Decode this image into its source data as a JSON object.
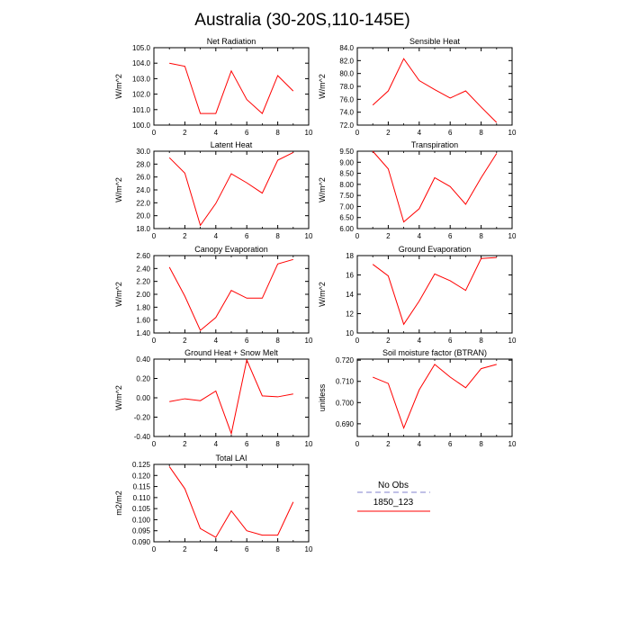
{
  "figure_title": "Australia (30-20S,110-145E)",
  "colors": {
    "series": "#ff0000",
    "no_obs": "#9a9ad8",
    "axis": "#000000"
  },
  "legend": {
    "items": [
      {
        "label": "No Obs",
        "color": "#9a9ad8",
        "dash": true
      },
      {
        "label": "1850_123",
        "color": "#ff0000",
        "dash": false
      }
    ]
  },
  "chart_data": [
    {
      "type": "line",
      "title": "Net Radiation",
      "ylabel": "W/m^2",
      "xlim": [
        0,
        10
      ],
      "ylim": [
        100.0,
        105.0
      ],
      "x_ticks": [
        0,
        2,
        4,
        6,
        8,
        10
      ],
      "y_ticks": [
        "100.0",
        "101.0",
        "102.0",
        "103.0",
        "104.0",
        "105.0"
      ],
      "x": [
        1,
        2,
        3,
        4,
        5,
        6,
        7,
        8,
        9
      ],
      "series": [
        {
          "name": "1850_123",
          "values": [
            104.0,
            103.8,
            100.75,
            100.75,
            103.5,
            101.65,
            100.75,
            103.2,
            102.2
          ]
        }
      ]
    },
    {
      "type": "line",
      "title": "Sensible Heat",
      "ylabel": "W/m^2",
      "xlim": [
        0,
        10
      ],
      "ylim": [
        72.0,
        84.0
      ],
      "x_ticks": [
        0,
        2,
        4,
        6,
        8,
        10
      ],
      "y_ticks": [
        "72.0",
        "74.0",
        "76.0",
        "78.0",
        "80.0",
        "82.0",
        "84.0"
      ],
      "x": [
        1,
        2,
        3,
        4,
        5,
        6,
        7,
        8,
        9
      ],
      "series": [
        {
          "name": "1850_123",
          "values": [
            75.1,
            77.3,
            82.3,
            78.9,
            77.5,
            76.2,
            77.3,
            74.8,
            72.4
          ]
        }
      ]
    },
    {
      "type": "line",
      "title": "Latent Heat",
      "ylabel": "W/m^2",
      "xlim": [
        0,
        10
      ],
      "ylim": [
        18.0,
        30.0
      ],
      "x_ticks": [
        0,
        2,
        4,
        6,
        8,
        10
      ],
      "y_ticks": [
        "18.0",
        "20.0",
        "22.0",
        "24.0",
        "26.0",
        "28.0",
        "30.0"
      ],
      "x": [
        1,
        2,
        3,
        4,
        5,
        6,
        7,
        8,
        9
      ],
      "series": [
        {
          "name": "1850_123",
          "values": [
            29.0,
            26.6,
            18.5,
            21.9,
            26.5,
            25.1,
            23.5,
            28.6,
            29.8
          ]
        }
      ]
    },
    {
      "type": "line",
      "title": "Transpiration",
      "ylabel": "W/m^2",
      "xlim": [
        0,
        10
      ],
      "ylim": [
        6.0,
        9.5
      ],
      "x_ticks": [
        0,
        2,
        4,
        6,
        8,
        10
      ],
      "y_ticks": [
        "6.00",
        "6.50",
        "7.00",
        "7.50",
        "8.00",
        "8.50",
        "9.00",
        "9.50"
      ],
      "x": [
        1,
        2,
        3,
        4,
        5,
        6,
        7,
        8,
        9
      ],
      "series": [
        {
          "name": "1850_123",
          "values": [
            9.5,
            8.7,
            6.3,
            6.9,
            8.3,
            7.9,
            7.1,
            8.3,
            9.4
          ]
        }
      ]
    },
    {
      "type": "line",
      "title": "Canopy Evaporation",
      "ylabel": "W/m^2",
      "xlim": [
        0,
        10
      ],
      "ylim": [
        1.4,
        2.6
      ],
      "x_ticks": [
        0,
        2,
        4,
        6,
        8,
        10
      ],
      "y_ticks": [
        "1.40",
        "1.60",
        "1.80",
        "2.00",
        "2.20",
        "2.40",
        "2.60"
      ],
      "x": [
        1,
        2,
        3,
        4,
        5,
        6,
        7,
        8,
        9
      ],
      "series": [
        {
          "name": "1850_123",
          "values": [
            2.42,
            1.97,
            1.44,
            1.64,
            2.06,
            1.94,
            1.94,
            2.47,
            2.54
          ]
        }
      ]
    },
    {
      "type": "line",
      "title": "Ground Evaporation",
      "ylabel": "W/m^2",
      "xlim": [
        0,
        10
      ],
      "ylim": [
        10,
        18
      ],
      "x_ticks": [
        0,
        2,
        4,
        6,
        8,
        10
      ],
      "y_ticks": [
        "10",
        "12",
        "14",
        "16",
        "18"
      ],
      "x": [
        1,
        2,
        3,
        4,
        5,
        6,
        7,
        8,
        9
      ],
      "series": [
        {
          "name": "1850_123",
          "values": [
            17.1,
            15.9,
            10.9,
            13.3,
            16.1,
            15.4,
            14.4,
            17.7,
            17.8
          ]
        }
      ]
    },
    {
      "type": "line",
      "title": "Ground Heat + Snow Melt",
      "ylabel": "W/m^2",
      "xlim": [
        0,
        10
      ],
      "ylim": [
        -0.4,
        0.4
      ],
      "x_ticks": [
        0,
        2,
        4,
        6,
        8,
        10
      ],
      "y_ticks": [
        "-0.40",
        "-0.20",
        "0.00",
        "0.20",
        "0.40"
      ],
      "x": [
        1,
        2,
        3,
        4,
        5,
        6,
        7,
        8,
        9
      ],
      "series": [
        {
          "name": "1850_123",
          "values": [
            -0.04,
            -0.01,
            -0.03,
            0.07,
            -0.37,
            0.39,
            0.02,
            0.01,
            0.04
          ]
        }
      ]
    },
    {
      "type": "line",
      "title": "Soil moisture factor (BTRAN)",
      "ylabel": "unitless",
      "xlim": [
        0,
        10
      ],
      "ylim": [
        0.684,
        0.7205
      ],
      "x_ticks": [
        0,
        2,
        4,
        6,
        8,
        10
      ],
      "y_ticks": [
        "0.690",
        "0.700",
        "0.710",
        "0.720"
      ],
      "x": [
        1,
        2,
        3,
        4,
        5,
        6,
        7,
        8,
        9
      ],
      "series": [
        {
          "name": "1850_123",
          "values": [
            0.712,
            0.709,
            0.688,
            0.706,
            0.718,
            0.712,
            0.707,
            0.716,
            0.718
          ]
        }
      ]
    },
    {
      "type": "line",
      "title": "Total LAI",
      "ylabel": "m2/m2",
      "xlim": [
        0,
        10
      ],
      "ylim": [
        0.09,
        0.125
      ],
      "x_ticks": [
        0,
        2,
        4,
        6,
        8,
        10
      ],
      "y_ticks": [
        "0.090",
        "0.095",
        "0.100",
        "0.105",
        "0.110",
        "0.115",
        "0.120",
        "0.125"
      ],
      "x": [
        1,
        2,
        3,
        4,
        5,
        6,
        7,
        8,
        9
      ],
      "series": [
        {
          "name": "1850_123",
          "values": [
            0.124,
            0.114,
            0.096,
            0.092,
            0.104,
            0.095,
            0.093,
            0.093,
            0.108
          ]
        }
      ]
    }
  ]
}
